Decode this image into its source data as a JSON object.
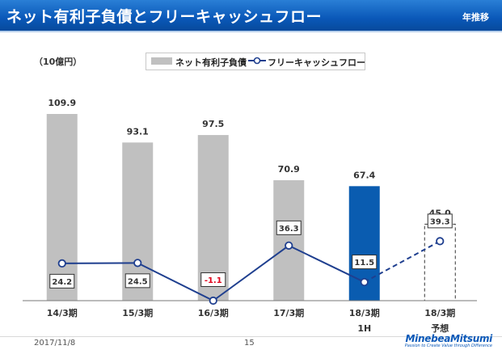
{
  "header": {
    "title": "ネット有利子負債とフリーキャッシュフロー",
    "tag": "年推移"
  },
  "colors": {
    "banner": "#0a58b8",
    "bar_gray": "#c0c0c0",
    "bar_highlight": "#0a5cb0",
    "line": "#1f3f8f",
    "negative_label": "#e0001a"
  },
  "footer": {
    "date": "2017/11/8",
    "page": "15",
    "logo": "MinebeaMitsumi",
    "logo_tagline": "Passion to Create Value through Difference"
  },
  "chart_data": {
    "type": "bar",
    "unit_label": "（10億円）",
    "categories": [
      "14/3期",
      "15/3期",
      "16/3期",
      "17/3期",
      "18/3期\n1H",
      "18/3期\n予想"
    ],
    "series": [
      {
        "name": "ネット有利子負債",
        "type": "bar",
        "values": [
          109.9,
          93.1,
          97.5,
          70.9,
          67.4,
          45.0
        ],
        "labels": [
          "109.9",
          "93.1",
          "97.5",
          "70.9",
          "67.4",
          "45.0"
        ],
        "styles": [
          "gray",
          "gray",
          "gray",
          "gray",
          "highlight",
          "forecast"
        ]
      },
      {
        "name": "フリーキャッシュフロー",
        "type": "line",
        "values": [
          24.2,
          24.5,
          -1.1,
          36.3,
          11.5,
          39.3
        ],
        "labels": [
          "24.2",
          "24.5",
          "-1.1",
          "36.3",
          "11.5",
          "39.3"
        ],
        "dashed_from_index": 4
      }
    ],
    "bar_ylim": [
      0,
      120
    ],
    "line_ylim": [
      -1.1,
      45
    ],
    "legend_position": "top-center"
  }
}
